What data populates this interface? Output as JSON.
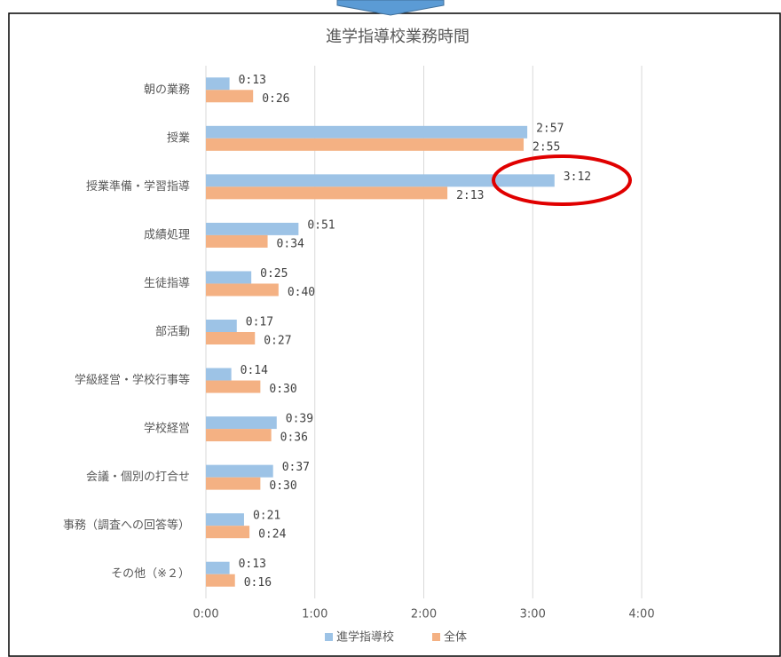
{
  "chart_data": {
    "type": "hbar",
    "title": "進学指導校業務時間",
    "categories": [
      "朝の業務",
      "授業",
      "授業準備・学習指導",
      "成績処理",
      "生徒指導",
      "部活動",
      "学級経営・学校行事等",
      "学校経営",
      "会議・個別の打合せ",
      "事務（調査への回答等）",
      "その他（※２）"
    ],
    "series": [
      {
        "name": "進学指導校",
        "color": "#9dc3e6",
        "values": [
          13,
          177,
          192,
          51,
          25,
          17,
          14,
          39,
          37,
          21,
          13
        ],
        "value_labels": [
          "0:13",
          "2:57",
          "3:12",
          "0:51",
          "0:25",
          "0:17",
          "0:14",
          "0:39",
          "0:37",
          "0:21",
          "0:13"
        ]
      },
      {
        "name": "全体",
        "color": "#f4b183",
        "values": [
          26,
          175,
          133,
          34,
          40,
          27,
          30,
          36,
          30,
          24,
          16
        ],
        "value_labels": [
          "0:26",
          "2:55",
          "2:13",
          "0:34",
          "0:40",
          "0:27",
          "0:30",
          "0:36",
          "0:30",
          "0:24",
          "0:16"
        ]
      }
    ],
    "xlim": [
      0,
      240
    ],
    "xticks": [
      {
        "value": 0,
        "label": "0:00"
      },
      {
        "value": 60,
        "label": "1:00"
      },
      {
        "value": 120,
        "label": "2:00"
      },
      {
        "value": 180,
        "label": "3:00"
      },
      {
        "value": 240,
        "label": "4:00"
      }
    ],
    "grid": true,
    "legend": "bottom"
  }
}
